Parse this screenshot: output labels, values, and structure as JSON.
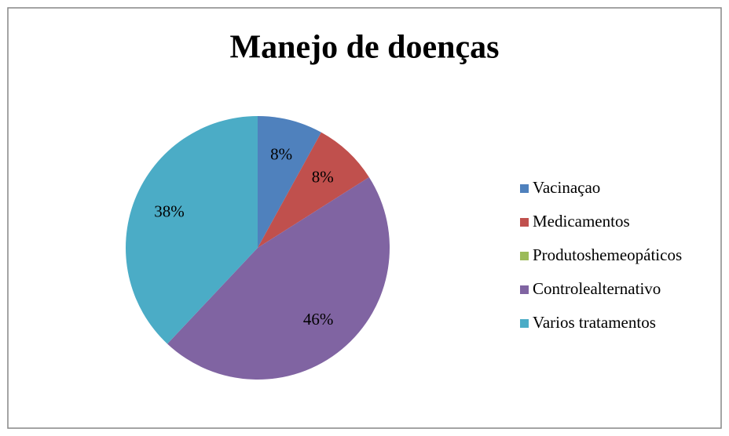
{
  "chart_data": {
    "type": "pie",
    "title": "Manejo de doenças",
    "categories": [
      "Vacinaçao",
      "Medicamentos",
      "Produtoshemeopáticos",
      "Controlealternativo",
      "Varios  tratamentos"
    ],
    "values": [
      8,
      8,
      0,
      46,
      38
    ],
    "value_labels": [
      "8%",
      "8%",
      null,
      "46%",
      "38%"
    ],
    "colors": [
      "#4f81bd",
      "#c0504d",
      "#9bbb59",
      "#8064a2",
      "#4bacc6"
    ],
    "legend": "right"
  }
}
